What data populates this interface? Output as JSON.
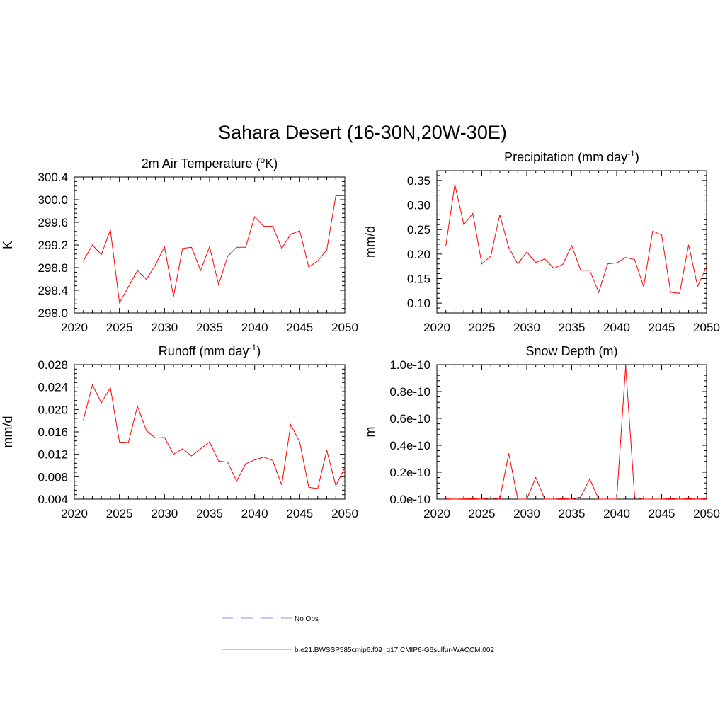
{
  "title": "Sahara Desert (16-30N,20W-30E)",
  "chart_data": [
    {
      "type": "line",
      "title": "2m Air Temperature (",
      "title_sup": "o",
      "title_after": "K)",
      "ylabel": "K",
      "xlim": [
        2020,
        2050
      ],
      "ylim": [
        298.0,
        300.4
      ],
      "xticks": [
        2020,
        2025,
        2030,
        2035,
        2040,
        2045,
        2050
      ],
      "xtick_labels": [
        "2020",
        "2025",
        "2030",
        "2035",
        "2040",
        "2045",
        "2050"
      ],
      "yticks": [
        298.0,
        298.4,
        298.8,
        299.2,
        299.6,
        300.0,
        300.4
      ],
      "ytick_labels": [
        "298.0",
        "298.4",
        "298.8",
        "299.2",
        "299.6",
        "300.0",
        "300.4"
      ],
      "series": [
        {
          "color": "#ff0000",
          "x": [
            2021,
            2022,
            2023,
            2024,
            2025,
            2026,
            2027,
            2028,
            2029,
            2030,
            2031,
            2032,
            2033,
            2034,
            2035,
            2036,
            2037,
            2038,
            2039,
            2040,
            2041,
            2042,
            2043,
            2044,
            2045,
            2046,
            2047,
            2048,
            2049,
            2050
          ],
          "y": [
            298.92,
            299.2,
            299.03,
            299.47,
            298.18,
            298.46,
            298.75,
            298.59,
            298.85,
            299.17,
            298.29,
            299.14,
            299.16,
            298.75,
            299.17,
            298.5,
            299.0,
            299.16,
            299.16,
            299.7,
            299.53,
            299.53,
            299.14,
            299.39,
            299.45,
            298.81,
            298.92,
            299.11,
            300.07,
            300.07
          ]
        }
      ]
    },
    {
      "type": "line",
      "title": "Precipitation (mm day",
      "title_sup": "-1",
      "title_after": ")",
      "ylabel": "mm/d",
      "xlim": [
        2020,
        2050
      ],
      "ylim": [
        0.08,
        0.37
      ],
      "xticks": [
        2020,
        2025,
        2030,
        2035,
        2040,
        2045,
        2050
      ],
      "xtick_labels": [
        "2020",
        "2025",
        "2030",
        "2035",
        "2040",
        "2045",
        "2050"
      ],
      "yticks": [
        0.1,
        0.15,
        0.2,
        0.25,
        0.3,
        0.35
      ],
      "ytick_labels": [
        "0.10",
        "0.15",
        "0.20",
        "0.25",
        "0.30",
        "0.35"
      ],
      "series": [
        {
          "color": "#ff0000",
          "x": [
            2021,
            2022,
            2023,
            2024,
            2025,
            2026,
            2027,
            2028,
            2029,
            2030,
            2031,
            2032,
            2033,
            2034,
            2035,
            2036,
            2037,
            2038,
            2039,
            2040,
            2041,
            2042,
            2043,
            2044,
            2045,
            2046,
            2047,
            2048,
            2049,
            2050
          ],
          "y": [
            0.217,
            0.342,
            0.26,
            0.283,
            0.18,
            0.196,
            0.28,
            0.213,
            0.18,
            0.204,
            0.183,
            0.19,
            0.171,
            0.179,
            0.217,
            0.167,
            0.167,
            0.122,
            0.18,
            0.182,
            0.193,
            0.189,
            0.133,
            0.247,
            0.239,
            0.122,
            0.12,
            0.219,
            0.134,
            0.175
          ]
        }
      ]
    },
    {
      "type": "line",
      "title": "Runoff (mm day",
      "title_sup": "-1",
      "title_after": ")",
      "ylabel": "mm/d",
      "xlim": [
        2020,
        2050
      ],
      "ylim": [
        0.004,
        0.028
      ],
      "xticks": [
        2020,
        2025,
        2030,
        2035,
        2040,
        2045,
        2050
      ],
      "xtick_labels": [
        "2020",
        "2025",
        "2030",
        "2035",
        "2040",
        "2045",
        "2050"
      ],
      "yticks": [
        0.004,
        0.008,
        0.012,
        0.016,
        0.02,
        0.024,
        0.028
      ],
      "ytick_labels": [
        "0.004",
        "0.008",
        "0.012",
        "0.016",
        "0.020",
        "0.024",
        "0.028"
      ],
      "series": [
        {
          "color": "#ff0000",
          "x": [
            2021,
            2022,
            2023,
            2024,
            2025,
            2026,
            2027,
            2028,
            2029,
            2030,
            2031,
            2032,
            2033,
            2034,
            2035,
            2036,
            2037,
            2038,
            2039,
            2040,
            2041,
            2042,
            2043,
            2044,
            2045,
            2046,
            2047,
            2048,
            2049,
            2050
          ],
          "y": [
            0.0181,
            0.0244,
            0.0212,
            0.0239,
            0.0142,
            0.0141,
            0.0206,
            0.0162,
            0.0149,
            0.015,
            0.012,
            0.013,
            0.0117,
            0.013,
            0.0142,
            0.0108,
            0.0106,
            0.0072,
            0.0103,
            0.011,
            0.0115,
            0.0109,
            0.0065,
            0.0173,
            0.0142,
            0.0061,
            0.0059,
            0.0127,
            0.0064,
            0.0096
          ]
        }
      ]
    },
    {
      "type": "line",
      "title": "Snow Depth (m)",
      "title_sup": "",
      "title_after": "",
      "ylabel": "m",
      "xlim": [
        2020,
        2050
      ],
      "ylim": [
        0.0,
        1.0
      ],
      "y_unit_note": "values in units of 1e-10 m",
      "xticks": [
        2020,
        2025,
        2030,
        2035,
        2040,
        2045,
        2050
      ],
      "xtick_labels": [
        "2020",
        "2025",
        "2030",
        "2035",
        "2040",
        "2045",
        "2050"
      ],
      "yticks": [
        0.0,
        0.2,
        0.4,
        0.6,
        0.8,
        1.0
      ],
      "ytick_labels": [
        "0.0e-10",
        "0.2e-10",
        "0.4e-10",
        "0.6e-10",
        "0.8e-10",
        "1.0e-10"
      ],
      "series": [
        {
          "color": "#ff0000",
          "x": [
            2021,
            2022,
            2023,
            2024,
            2025,
            2026,
            2027,
            2028,
            2029,
            2030,
            2031,
            2032,
            2033,
            2034,
            2035,
            2036,
            2037,
            2038,
            2039,
            2040,
            2041,
            2042,
            2043,
            2044,
            2045,
            2046,
            2047,
            2048,
            2049,
            2050
          ],
          "y": [
            0.002,
            0.0,
            0.002,
            0.003,
            0.0,
            0.01,
            0.0,
            0.34,
            0.0,
            0.0,
            0.16,
            0.0,
            0.0,
            0.004,
            0.0,
            0.015,
            0.15,
            0.0,
            0.0,
            0.0,
            0.99,
            0.012,
            0.0,
            0.0,
            0.0,
            0.004,
            0.0,
            0.003,
            0.0,
            0.004
          ]
        }
      ]
    }
  ],
  "legend": {
    "placement": "bottom-center",
    "items": [
      {
        "label": "No Obs",
        "color": "#a8a8e8",
        "style": "dashed"
      },
      {
        "label": "b.e21.BWSSP585cmip6.f09_g17.CMIP6-G6sulfur-WACCM.002",
        "color": "#ff8888",
        "style": "solid"
      }
    ]
  }
}
